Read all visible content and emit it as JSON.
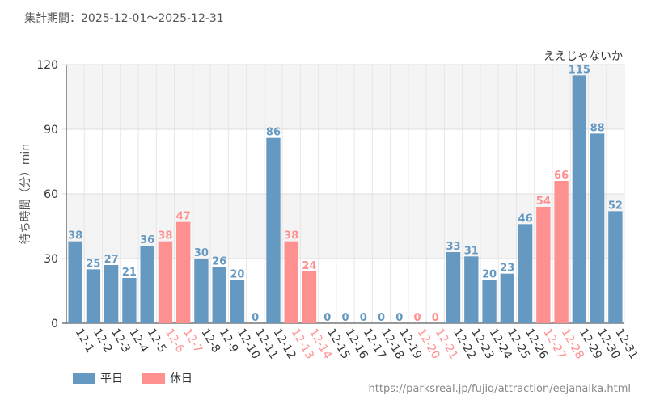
{
  "header": {
    "period_label": "集計期間：2025-12-01〜2025-12-31"
  },
  "colors": {
    "weekday": "#6699c2",
    "holiday": "#ff9090",
    "grid": "#e6e6e6",
    "band": "#f4f4f4",
    "axis": "#333333"
  },
  "legend": {
    "weekday_label": "平日",
    "holiday_label": "休日"
  },
  "footer": {
    "source_url": "https://parksreal.jp/fujiq/attraction/eejanaika.html"
  },
  "chart_data": {
    "type": "bar",
    "title": "ええじゃないか",
    "xlabel": "",
    "ylabel": "待ち時間（分）min",
    "ylim": [
      0,
      120
    ],
    "yticks": [
      0,
      30,
      60,
      90,
      120
    ],
    "categories": [
      "12-1",
      "12-2",
      "12-3",
      "12-4",
      "12-5",
      "12-6",
      "12-7",
      "12-8",
      "12-9",
      "12-10",
      "12-11",
      "12-12",
      "12-13",
      "12-14",
      "12-15",
      "12-16",
      "12-17",
      "12-18",
      "12-19",
      "12-20",
      "12-21",
      "12-22",
      "12-23",
      "12-24",
      "12-25",
      "12-26",
      "12-27",
      "12-28",
      "12-29",
      "12-30",
      "12-31"
    ],
    "values": [
      38,
      25,
      27,
      21,
      36,
      38,
      47,
      30,
      26,
      20,
      0,
      86,
      38,
      24,
      0,
      0,
      0,
      0,
      0,
      0,
      0,
      33,
      31,
      20,
      23,
      46,
      54,
      66,
      115,
      88,
      52
    ],
    "day_type": [
      "平日",
      "平日",
      "平日",
      "平日",
      "平日",
      "休日",
      "休日",
      "平日",
      "平日",
      "平日",
      "平日",
      "平日",
      "休日",
      "休日",
      "平日",
      "平日",
      "平日",
      "平日",
      "平日",
      "休日",
      "休日",
      "平日",
      "平日",
      "平日",
      "平日",
      "平日",
      "休日",
      "休日",
      "平日",
      "平日",
      "平日"
    ],
    "legend": [
      "平日",
      "休日"
    ]
  }
}
